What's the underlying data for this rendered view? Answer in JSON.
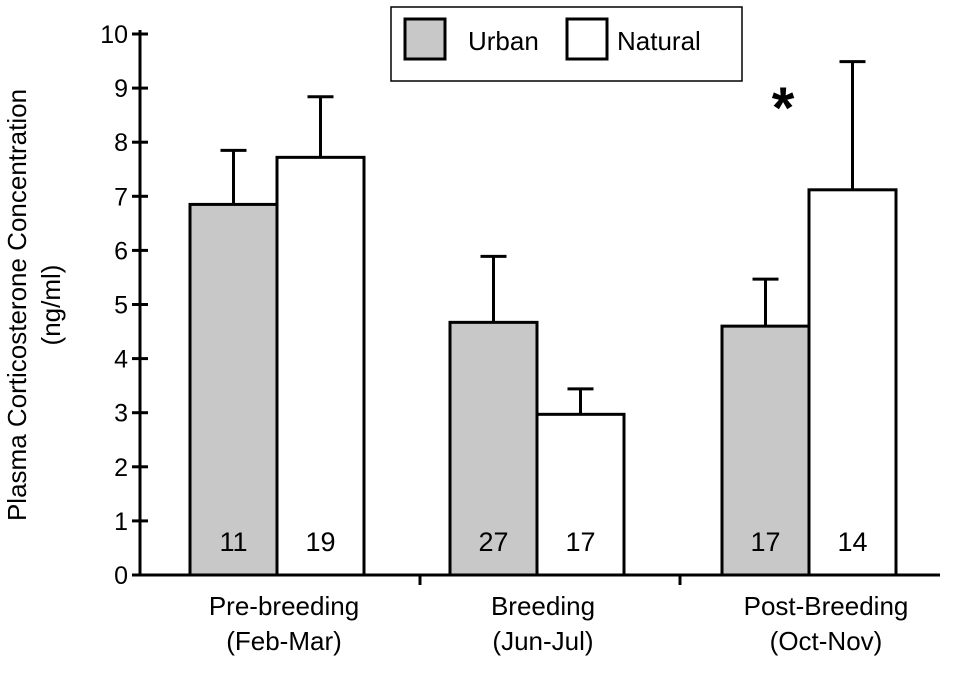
{
  "chart_data": {
    "type": "bar",
    "title": "",
    "xlabel": "",
    "ylabel_line1": "Plasma Corticosterone Concentration",
    "ylabel_line2": "(ng/ml)",
    "ylim": [
      0,
      10
    ],
    "yticks": [
      0,
      1,
      2,
      3,
      4,
      5,
      6,
      7,
      8,
      9,
      10
    ],
    "grid": false,
    "legend_position": "top-center",
    "categories": [
      {
        "line1": "Pre-breeding",
        "line2": "(Feb-Mar)"
      },
      {
        "line1": "Breeding",
        "line2": "(Jun-Jul)"
      },
      {
        "line1": "Post-Breeding",
        "line2": "(Oct-Nov)"
      }
    ],
    "series": [
      {
        "name": "Urban",
        "color": "#c8c8c8",
        "values": [
          6.85,
          4.67,
          4.6
        ],
        "errors": [
          1.0,
          1.22,
          0.87
        ],
        "n": [
          "11",
          "27",
          "17"
        ]
      },
      {
        "name": "Natural",
        "color": "#ffffff",
        "values": [
          7.72,
          2.97,
          7.12
        ],
        "errors": [
          1.12,
          0.47,
          2.37
        ],
        "n": [
          "19",
          "17",
          "14"
        ]
      }
    ],
    "annotations": [
      {
        "text": "*",
        "category_index": 2
      }
    ]
  }
}
